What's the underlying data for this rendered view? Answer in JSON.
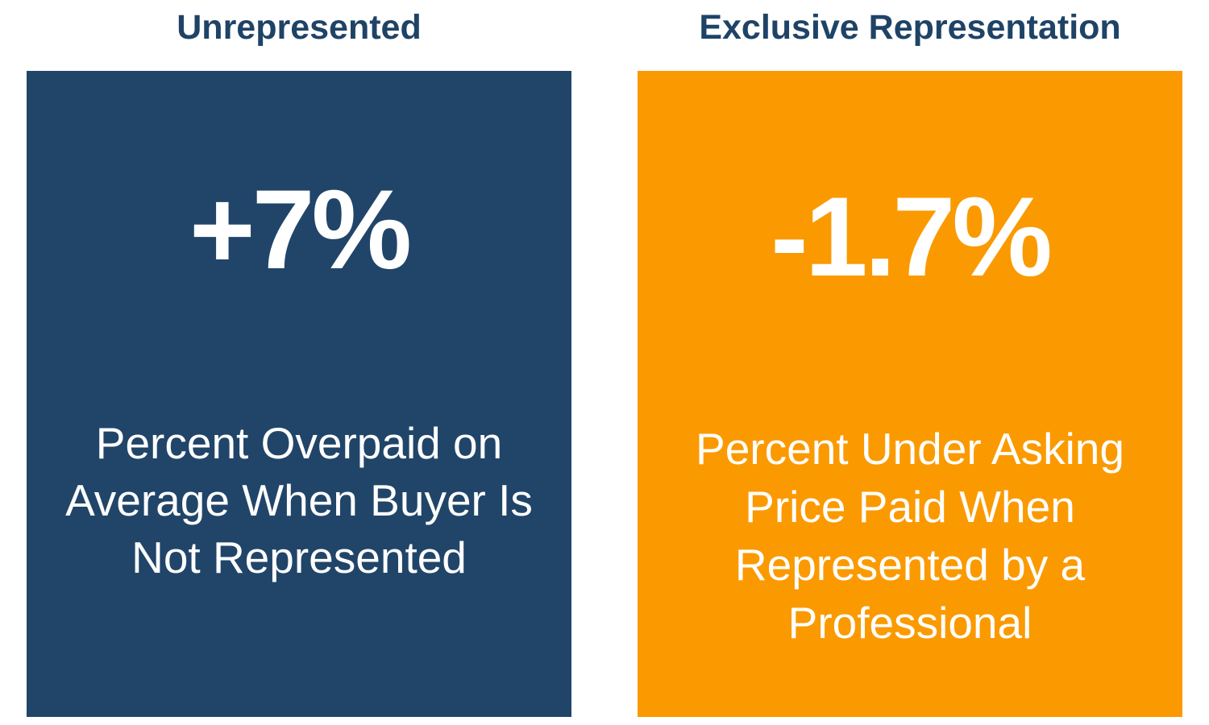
{
  "unrepresented": {
    "heading": "Unrepresented",
    "stat": "+7%",
    "description": "Percent Overpaid on Average When Buyer Is Not Represented",
    "color": "#214569"
  },
  "exclusive": {
    "heading": "Exclusive Representation",
    "stat": "-1.7%",
    "description": "Percent Under Asking Price Paid When Represented by a Professional",
    "color": "#fa9a00"
  },
  "heading_color": "#1f4367"
}
